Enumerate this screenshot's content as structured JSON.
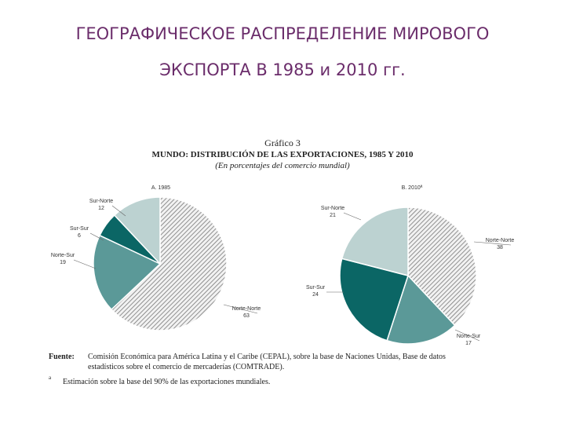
{
  "slide_title": [
    "ГЕОГРАФИЧЕСКОЕ РАСПРЕДЕЛЕНИЕ МИРОВОГО",
    "ЭКСПОРТА В 1985 и 2010 гг."
  ],
  "figure": {
    "number": "Gráfico 3",
    "title": "MUNDO: DISTRIBUCIÓN DE LAS EXPORTACIONES, 1985 Y 2010",
    "subtitle": "(En porcentajes del comercio mundial)"
  },
  "chart_data": [
    {
      "type": "pie",
      "title": "A. 1985",
      "categories": [
        "Norte-Norte",
        "Norte-Sur",
        "Sur-Sur",
        "Sur-Norte"
      ],
      "values": [
        63,
        19,
        6,
        12
      ],
      "colors": [
        "#e6e6e6",
        "#5b9998",
        "#0b6665",
        "#bcd2d1"
      ],
      "hatched": [
        true,
        false,
        false,
        false
      ]
    },
    {
      "type": "pie",
      "title": "B. 2010ª",
      "categories": [
        "Norte-Norte",
        "Norte-Sur",
        "Sur-Sur",
        "Sur-Norte"
      ],
      "values": [
        38,
        17,
        24,
        21
      ],
      "colors": [
        "#e6e6e6",
        "#5b9998",
        "#0b6665",
        "#bcd2d1"
      ],
      "hatched": [
        true,
        false,
        false,
        false
      ]
    }
  ],
  "source": {
    "label": "Fuente:",
    "lines": [
      "Comisión Económica para América Latina y el Caribe (CEPAL), sobre la base de Naciones Unidas, Base de datos",
      "estadísticos sobre el comercio de mercaderías (COMTRADE)."
    ]
  },
  "footnote": {
    "mark": "a",
    "text": "Estimación sobre la base del 90% de las exportaciones mundiales."
  }
}
